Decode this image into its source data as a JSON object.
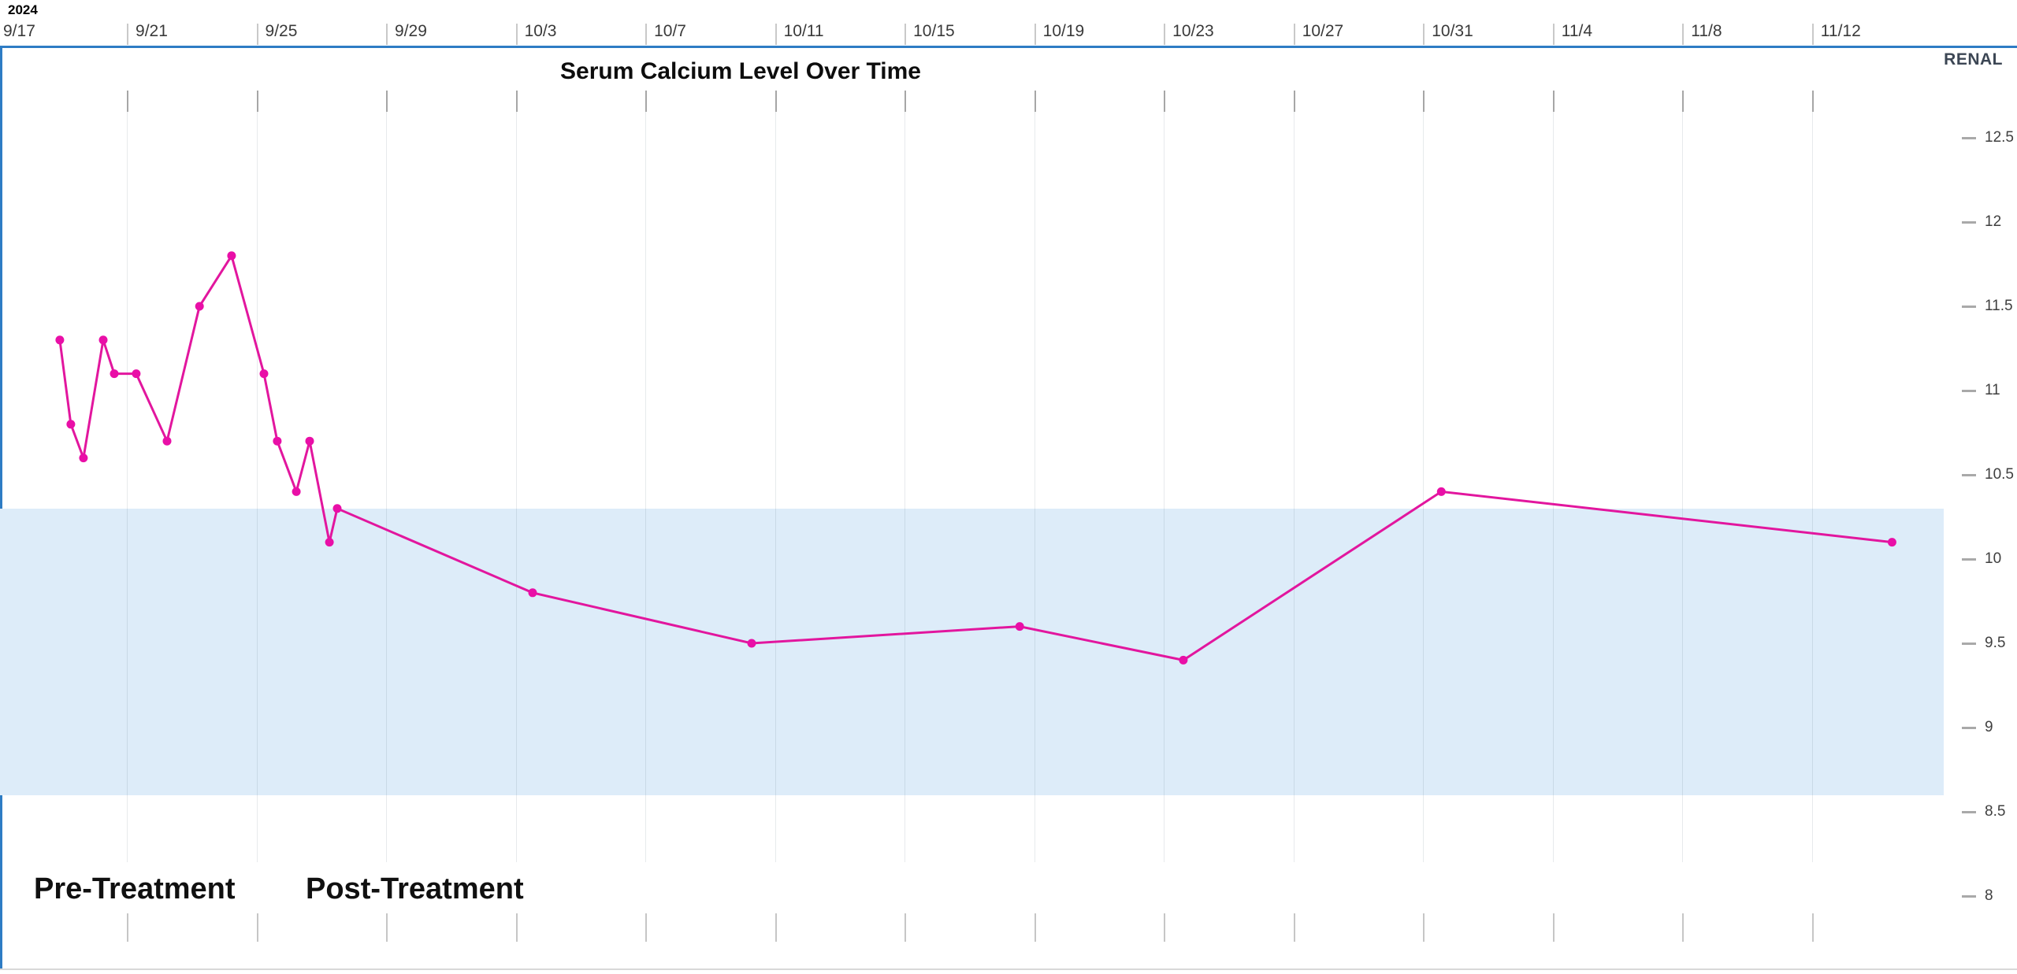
{
  "page": {
    "year_label": "2024",
    "panel_label": "RENAL"
  },
  "chart_data": {
    "type": "line",
    "title": "Serum Calcium Level Over Time",
    "x_axis": {
      "unit": "date",
      "start_label_year": "2024",
      "ticks": [
        {
          "label": "9/17",
          "day": 0
        },
        {
          "label": "9/21",
          "day": 4
        },
        {
          "label": "9/25",
          "day": 8
        },
        {
          "label": "9/29",
          "day": 12
        },
        {
          "label": "10/3",
          "day": 16
        },
        {
          "label": "10/7",
          "day": 20
        },
        {
          "label": "10/11",
          "day": 24
        },
        {
          "label": "10/15",
          "day": 28
        },
        {
          "label": "10/19",
          "day": 32
        },
        {
          "label": "10/23",
          "day": 36
        },
        {
          "label": "10/27",
          "day": 40
        },
        {
          "label": "10/31",
          "day": 44
        },
        {
          "label": "11/4",
          "day": 48
        },
        {
          "label": "11/8",
          "day": 52
        },
        {
          "label": "11/12",
          "day": 56
        }
      ]
    },
    "y_axis": {
      "side": "right",
      "tick_labels": [
        "12.5",
        "12",
        "11.5",
        "11",
        "10.5",
        "10",
        "9.5",
        "9",
        "8.5",
        "8"
      ],
      "tick_values": [
        12.5,
        12,
        11.5,
        11,
        10.5,
        10,
        9.5,
        9,
        8.5,
        8
      ]
    },
    "normal_range_band": {
      "low": 8.6,
      "high": 10.3
    },
    "annotations": [
      {
        "text": "Pre-Treatment"
      },
      {
        "text": "Post-Treatment"
      }
    ],
    "series": [
      {
        "name": "Serum Calcium",
        "points": [
          {
            "date": "9/18",
            "day": 1.93,
            "value": 11.3
          },
          {
            "date": "9/19",
            "day": 2.27,
            "value": 10.8
          },
          {
            "date": "9/19",
            "day": 2.66,
            "value": 10.6
          },
          {
            "date": "9/20",
            "day": 3.27,
            "value": 11.3
          },
          {
            "date": "9/20",
            "day": 3.61,
            "value": 11.1
          },
          {
            "date": "9/21",
            "day": 4.29,
            "value": 11.1
          },
          {
            "date": "9/22",
            "day": 5.24,
            "value": 10.7
          },
          {
            "date": "9/23",
            "day": 6.24,
            "value": 11.5
          },
          {
            "date": "9/24",
            "day": 7.23,
            "value": 11.8
          },
          {
            "date": "9/25",
            "day": 8.23,
            "value": 11.1
          },
          {
            "date": "9/25",
            "day": 8.64,
            "value": 10.7
          },
          {
            "date": "9/26",
            "day": 9.23,
            "value": 10.4
          },
          {
            "date": "9/26",
            "day": 9.64,
            "value": 10.7
          },
          {
            "date": "9/27",
            "day": 10.25,
            "value": 10.1
          },
          {
            "date": "9/27",
            "day": 10.49,
            "value": 10.3
          },
          {
            "date": "10/3",
            "day": 16.52,
            "value": 9.8
          },
          {
            "date": "10/10",
            "day": 23.28,
            "value": 9.5
          },
          {
            "date": "10/18",
            "day": 31.55,
            "value": 9.6
          },
          {
            "date": "10/23",
            "day": 36.6,
            "value": 9.4
          },
          {
            "date": "10/31",
            "day": 44.56,
            "value": 10.4
          },
          {
            "date": "11/14",
            "day": 58.47,
            "value": 10.1
          }
        ]
      }
    ],
    "colors": {
      "line": "#e2169e",
      "marker": "#e90fa7",
      "normal_band": "#ddecf9",
      "axis_border_blue": "#2e7cc4",
      "bottom_border_gray": "#d8d8d8"
    }
  }
}
